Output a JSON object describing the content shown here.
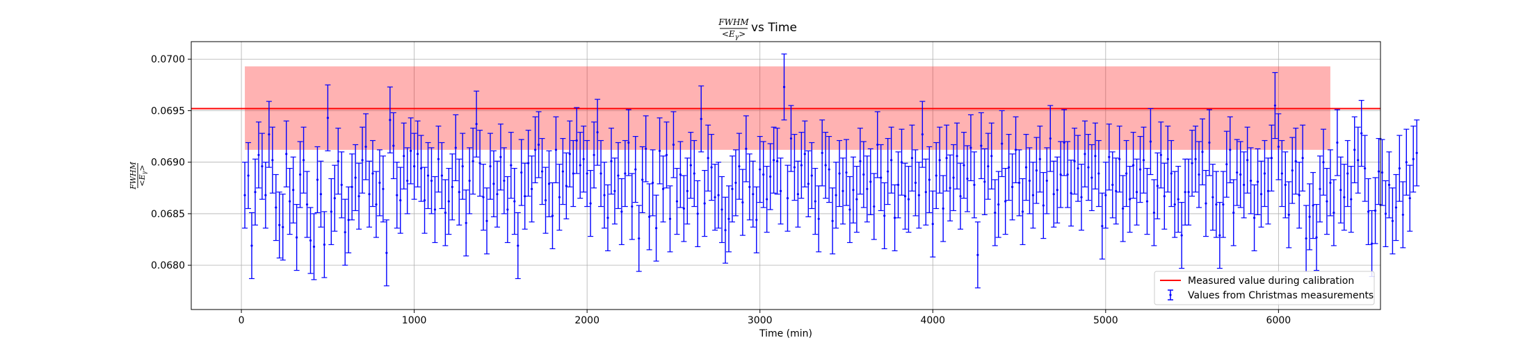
{
  "chart_data": {
    "type": "scatter",
    "title_suffix": "vs Time",
    "title_fraction": {
      "numerator": "FWHM",
      "denominator": "<E",
      "denominator_subscript": "γ",
      "denominator_close": ">"
    },
    "xlabel": "Time (min)",
    "ylabel_fraction": {
      "numerator": "FWHM",
      "denominator": "<E",
      "denominator_subscript": "γ",
      "denominator_close": ">"
    },
    "xlim": [
      -290,
      6590
    ],
    "ylim": [
      0.06757,
      0.07017
    ],
    "xticks": [
      0,
      1000,
      2000,
      3000,
      4000,
      5000,
      6000
    ],
    "xtick_labels": [
      "0",
      "1000",
      "2000",
      "3000",
      "4000",
      "5000",
      "6000"
    ],
    "yticks": [
      0.068,
      0.0685,
      0.069,
      0.0695,
      0.07
    ],
    "ytick_labels": [
      "0.0680",
      "0.0685",
      "0.0690",
      "0.0695",
      "0.0700"
    ],
    "grid": true,
    "legend_position": "lower-right",
    "reference_line": {
      "name": "Measured value during calibration",
      "y": 0.06952,
      "color": "#ff0000"
    },
    "reference_band": {
      "y_low": 0.06912,
      "y_high": 0.06993,
      "x_start": 20,
      "x_end": 6300,
      "color": "#ff0000",
      "alpha": 0.3
    },
    "series": [
      {
        "name": "Values from Christmas measurements",
        "color": "#0000ff",
        "x_start": 20,
        "x_step": 20,
        "error": 0.00032,
        "values": [
          0.06868,
          0.06887,
          0.06819,
          0.06871,
          0.06907,
          0.06896,
          0.06868,
          0.06927,
          0.06902,
          0.06856,
          0.06839,
          0.06837,
          0.06908,
          0.06862,
          0.06873,
          0.06827,
          0.06888,
          0.06902,
          0.06859,
          0.06824,
          0.06818,
          0.06883,
          0.06869,
          0.0682,
          0.06943,
          0.06852,
          0.06865,
          0.06901,
          0.06878,
          0.06832,
          0.06844,
          0.06876,
          0.06885,
          0.06867,
          0.06902,
          0.06915,
          0.06869,
          0.06889,
          0.06859,
          0.0688,
          0.06874,
          0.06812,
          0.06941,
          0.06916,
          0.06868,
          0.06863,
          0.06906,
          0.06882,
          0.06911,
          0.06896,
          0.06908,
          0.06894,
          0.06863,
          0.06887,
          0.06882,
          0.06854,
          0.06903,
          0.06887,
          0.06851,
          0.06862,
          0.06876,
          0.06914,
          0.06871,
          0.06896,
          0.06841,
          0.06882,
          0.06901,
          0.06937,
          0.06899,
          0.06866,
          0.06843,
          0.06896,
          0.06879,
          0.06869,
          0.06905,
          0.06882,
          0.06854,
          0.06897,
          0.06862,
          0.06819,
          0.0689,
          0.06867,
          0.06899,
          0.06874,
          0.06912,
          0.06917,
          0.06891,
          0.06863,
          0.06879,
          0.06848,
          0.06912,
          0.06866,
          0.06891,
          0.06877,
          0.06908,
          0.06889,
          0.06921,
          0.06897,
          0.06903,
          0.06889,
          0.0686,
          0.06907,
          0.06929,
          0.06889,
          0.06868,
          0.06846,
          0.06901,
          0.06872,
          0.06887,
          0.06852,
          0.06889,
          0.06919,
          0.06857,
          0.06893,
          0.06826,
          0.06883,
          0.06913,
          0.06847,
          0.0688,
          0.06836,
          0.06911,
          0.06874,
          0.06907,
          0.06845,
          0.06917,
          0.06862,
          0.06888,
          0.06855,
          0.06872,
          0.06897,
          0.06889,
          0.0685,
          0.06942,
          0.0686,
          0.06904,
          0.06895,
          0.06866,
          0.06868,
          0.06854,
          0.06834,
          0.06845,
          0.06874,
          0.0688,
          0.06896,
          0.06861,
          0.06913,
          0.06876,
          0.06869,
          0.06844,
          0.06893,
          0.06888,
          0.06864,
          0.06886,
          0.06902,
          0.06901,
          0.06872,
          0.06973,
          0.06865,
          0.06923,
          0.06895,
          0.06869,
          0.06897,
          0.06908,
          0.06879,
          0.06887,
          0.06862,
          0.06845,
          0.06909,
          0.06897,
          0.06893,
          0.06843,
          0.06868,
          0.06889,
          0.06872,
          0.0689,
          0.06854,
          0.06873,
          0.06864,
          0.06901,
          0.06888,
          0.06874,
          0.06881,
          0.06857,
          0.06917,
          0.06885,
          0.06848,
          0.06891,
          0.06902,
          0.06846,
          0.06878,
          0.069,
          0.06867,
          0.06864,
          0.06904,
          0.0688,
          0.06868,
          0.06927,
          0.06871,
          0.06883,
          0.0684,
          0.06887,
          0.06902,
          0.06855,
          0.06904,
          0.06875,
          0.06885,
          0.06906,
          0.06867,
          0.06897,
          0.06884,
          0.06914,
          0.06878,
          0.0681,
          0.06916,
          0.06881,
          0.06896,
          0.06906,
          0.06851,
          0.06859,
          0.06918,
          0.06862,
          0.06895,
          0.06876,
          0.06912,
          0.0688,
          0.06852,
          0.06895,
          0.06882,
          0.06868,
          0.06892,
          0.06903,
          0.06858,
          0.06882,
          0.06923,
          0.06869,
          0.06873,
          0.06888,
          0.06919,
          0.06888,
          0.0687,
          0.06901,
          0.06894,
          0.06866,
          0.06908,
          0.06895,
          0.06885,
          0.06906,
          0.06889,
          0.06838,
          0.06868,
          0.06905,
          0.06878,
          0.06872,
          0.06903,
          0.06855,
          0.06889,
          0.06864,
          0.06897,
          0.06871,
          0.06893,
          0.06902,
          0.06862,
          0.0692,
          0.06851,
          0.06877,
          0.06907,
          0.06867,
          0.06903,
          0.06889,
          0.06859,
          0.06864,
          0.06829,
          0.06871,
          0.06871,
          0.06899,
          0.06903,
          0.06888,
          0.0691,
          0.0686,
          0.06919,
          0.06866,
          0.06859,
          0.06829,
          0.06859,
          0.06898,
          0.06912,
          0.06851,
          0.0689,
          0.06888,
          0.06878,
          0.06902,
          0.06882,
          0.06846,
          0.06881,
          0.06869,
          0.06889,
          0.06872,
          0.06904,
          0.06955,
          0.06915,
          0.06889,
          0.06878,
          0.06849,
          0.06892,
          0.06901,
          0.06868,
          0.06904,
          0.06826,
          0.06847,
          0.06858,
          0.06827,
          0.06874,
          0.069,
          0.06862,
          0.0688,
          0.06851,
          0.06919,
          0.06873,
          0.06866,
          0.06889,
          0.06864,
          0.06912,
          0.06902,
          0.06928,
          0.06894,
          0.06852,
          0.06821,
          0.06853,
          0.06891,
          0.0689,
          0.0685,
          0.06878,
          0.06843,
          0.06856,
          0.06894,
          0.06849,
          0.069,
          0.06865,
          0.06903,
          0.06909
        ]
      }
    ]
  }
}
